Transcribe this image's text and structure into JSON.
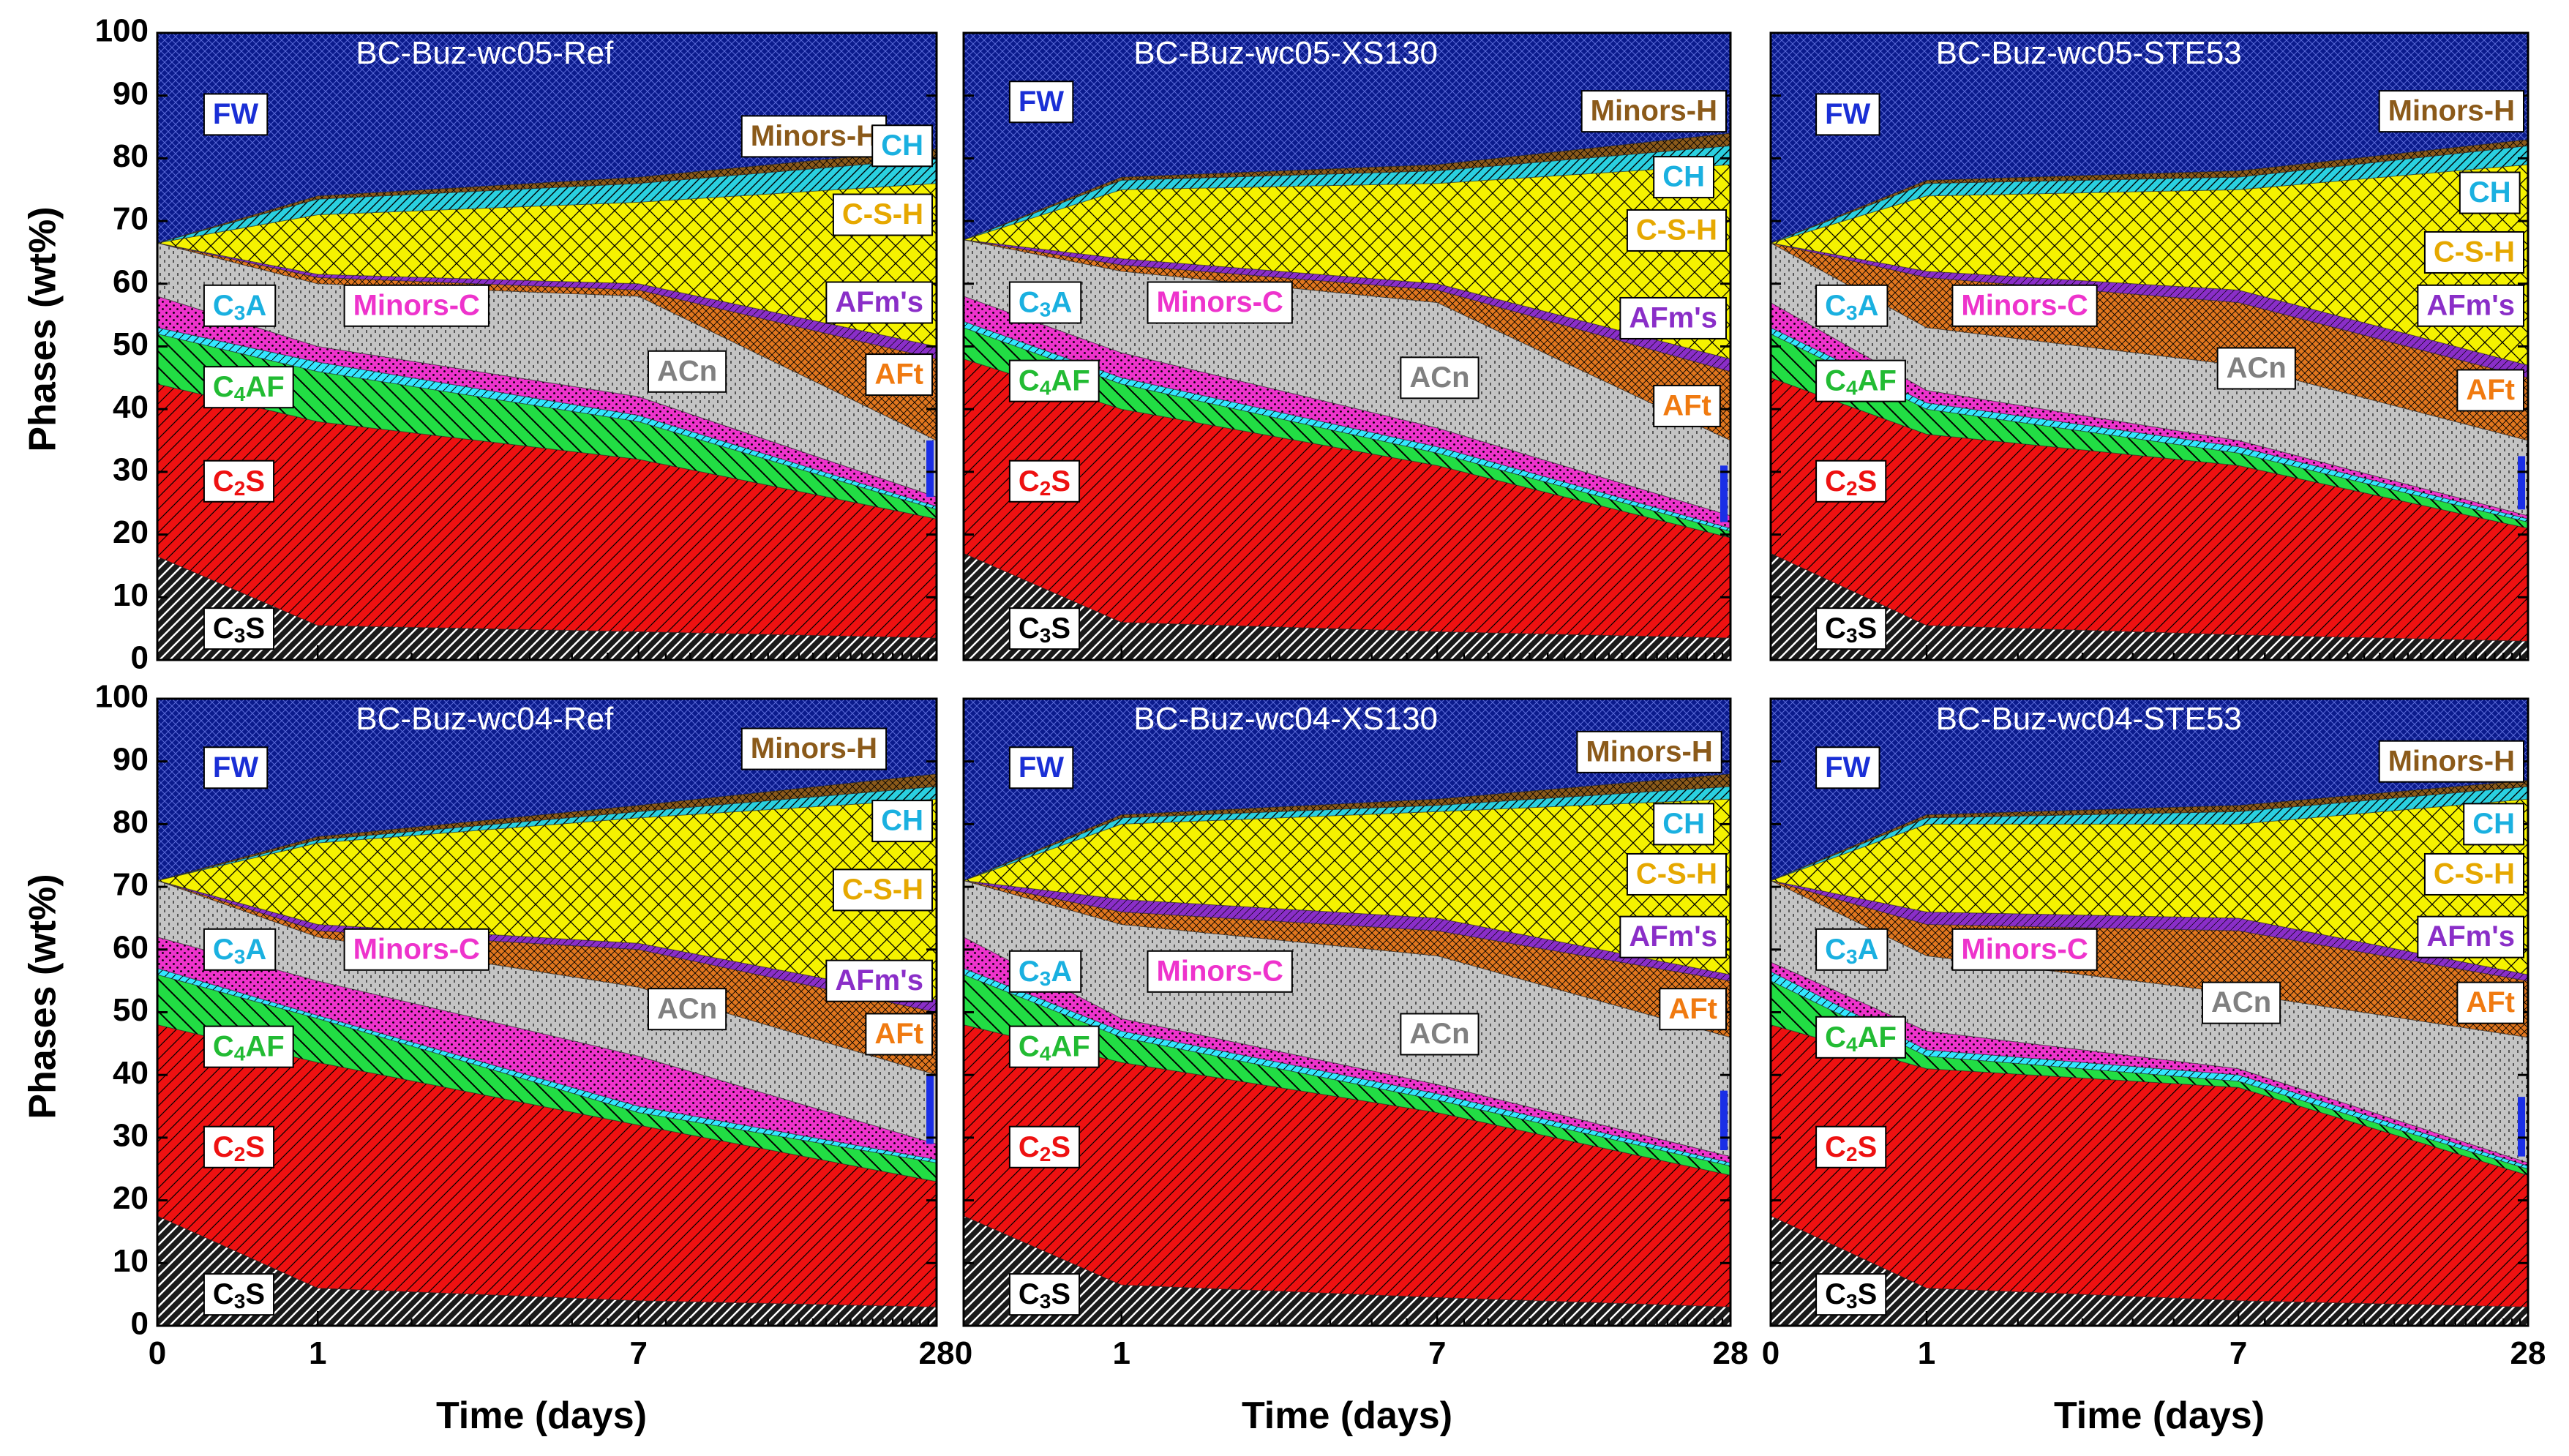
{
  "chart_data": {
    "type": "area",
    "stacked": true,
    "x_axis": {
      "label": "Time (days)",
      "ticks": [
        "0",
        "1",
        "7",
        "28"
      ],
      "tick_values": [
        0,
        1,
        7,
        28
      ]
    },
    "y_axis": {
      "label": "Phases (wt%)",
      "ylim": [
        0,
        100
      ],
      "ticks": [
        0,
        10,
        20,
        30,
        40,
        50,
        60,
        70,
        80,
        90,
        100
      ]
    },
    "stack_order": [
      "C3S",
      "C2S",
      "C4AF",
      "C3A",
      "Minors-C",
      "ACn",
      "AFt",
      "AFm's",
      "C-S-H",
      "CH",
      "Minors-H",
      "FW"
    ],
    "phase_labels": {
      "FW": "FW",
      "Minors-H": "Minors-H",
      "CH": "CH",
      "C-S-H": "C-S-H",
      "AFm's": "AFm's",
      "AFt": "AFt",
      "ACn": "ACn",
      "Minors-C": "Minors-C",
      "C3A": [
        "C",
        "3",
        "A"
      ],
      "C4AF": [
        "C",
        "4",
        "AF"
      ],
      "C2S": [
        "C",
        "2",
        "S"
      ],
      "C3S": [
        "C",
        "3",
        "S"
      ]
    },
    "colors": {
      "C3S": "#1a1a1a",
      "C2S": "#ee1111",
      "C4AF": "#22dd44",
      "C3A": "#33e6ff",
      "Minors-C": "#ee33cc",
      "ACn": "#c4c4c4",
      "AFt": "#e0761e",
      "AFm's": "#8a2ec8",
      "C-S-H": "#f5f200",
      "CH": "#2ad0e0",
      "Minors-H": "#8b5a1a",
      "FW": "#0a1a8c"
    },
    "label_colors": {
      "FW": "#1a2fd6",
      "Minors-H": "#8b5a1a",
      "CH": "#1ab0e0",
      "C-S-H": "#e6a800",
      "AFm's": "#8a2ec8",
      "AFt": "#f07a10",
      "ACn": "#808080",
      "Minors-C": "#ee33cc",
      "C3A": "#1ab0e0",
      "C4AF": "#22bb33",
      "C2S": "#ee1111",
      "C3S": "#000000"
    },
    "panels": [
      {
        "title": "BC-Buz-wc05-Ref",
        "boundaries": [
          [
            16.5,
            5.5,
            4.5,
            3.5
          ],
          [
            44,
            38,
            32,
            22.5
          ],
          [
            52,
            46,
            38,
            24
          ],
          [
            53,
            47.5,
            39,
            24.5
          ],
          [
            58,
            50,
            42,
            26
          ],
          [
            66.5,
            60,
            58,
            35
          ],
          [
            66.5,
            61,
            59,
            48
          ],
          [
            66.5,
            61.5,
            60,
            50
          ],
          [
            66.5,
            71,
            73,
            76
          ],
          [
            66.5,
            73.5,
            76,
            80
          ],
          [
            66.5,
            74,
            77,
            81.5
          ],
          [
            100,
            100,
            100,
            100
          ]
        ]
      },
      {
        "title": "BC-Buz-wc05-XS130",
        "boundaries": [
          [
            17,
            6,
            4.5,
            3.5
          ],
          [
            48,
            40,
            31,
            19.5
          ],
          [
            53,
            44,
            33,
            20.5
          ],
          [
            54,
            45,
            34,
            21
          ],
          [
            58,
            49,
            37,
            23
          ],
          [
            67,
            62,
            57,
            35
          ],
          [
            67,
            63,
            59,
            46
          ],
          [
            67,
            64,
            60,
            48
          ],
          [
            67,
            75,
            76,
            79
          ],
          [
            67,
            76.5,
            78,
            82
          ],
          [
            67,
            77,
            79,
            84
          ],
          [
            100,
            100,
            100,
            100
          ]
        ]
      },
      {
        "title": "BC-Buz-wc05-STE53",
        "boundaries": [
          [
            17,
            5.5,
            4,
            3
          ],
          [
            45,
            36,
            31,
            21
          ],
          [
            52,
            40,
            33,
            22
          ],
          [
            53,
            41,
            34,
            22.5
          ],
          [
            57,
            43,
            35,
            23
          ],
          [
            66.5,
            53,
            47,
            35
          ],
          [
            66.5,
            61,
            57,
            45
          ],
          [
            66.5,
            62,
            59,
            47
          ],
          [
            66.5,
            74,
            75,
            79
          ],
          [
            66.5,
            76,
            77,
            82
          ],
          [
            66.5,
            76.5,
            78,
            83
          ],
          [
            100,
            100,
            100,
            100
          ]
        ]
      },
      {
        "title": "BC-Buz-wc04-Ref",
        "boundaries": [
          [
            17.5,
            6,
            4,
            3
          ],
          [
            48,
            42,
            32,
            23
          ],
          [
            56,
            49,
            34,
            26
          ],
          [
            57,
            49.5,
            35,
            26.5
          ],
          [
            62,
            55,
            43,
            29
          ],
          [
            71,
            62,
            54,
            40
          ],
          [
            71,
            63,
            60,
            50
          ],
          [
            71,
            64,
            61,
            52
          ],
          [
            71,
            77,
            81,
            84
          ],
          [
            71,
            77.5,
            82,
            86
          ],
          [
            71,
            78,
            83,
            88
          ],
          [
            100,
            100,
            100,
            100
          ]
        ]
      },
      {
        "title": "BC-Buz-wc04-XS130",
        "boundaries": [
          [
            17.5,
            6.5,
            4.5,
            3
          ],
          [
            48,
            42,
            34,
            24
          ],
          [
            56,
            46,
            36,
            25.5
          ],
          [
            57,
            47,
            37,
            26
          ],
          [
            62,
            49,
            38.5,
            27
          ],
          [
            71,
            64,
            59,
            46
          ],
          [
            71,
            66,
            63,
            55
          ],
          [
            71,
            68,
            65,
            56
          ],
          [
            71,
            80,
            82,
            84
          ],
          [
            71,
            81,
            83,
            86
          ],
          [
            71,
            81.5,
            84,
            88
          ],
          [
            100,
            100,
            100,
            100
          ]
        ]
      },
      {
        "title": "BC-Buz-wc04-STE53",
        "boundaries": [
          [
            17.5,
            6,
            4,
            3
          ],
          [
            48,
            41,
            38,
            24
          ],
          [
            55,
            43,
            39,
            25
          ],
          [
            56.5,
            44,
            40,
            25.5
          ],
          [
            58,
            47,
            41,
            26
          ],
          [
            71,
            59,
            53,
            46
          ],
          [
            71,
            64,
            63,
            55
          ],
          [
            71,
            66,
            65,
            56
          ],
          [
            71,
            80,
            80,
            84
          ],
          [
            71,
            81,
            82,
            86
          ],
          [
            71,
            81.5,
            83,
            87
          ],
          [
            100,
            100,
            100,
            100
          ]
        ]
      }
    ]
  }
}
